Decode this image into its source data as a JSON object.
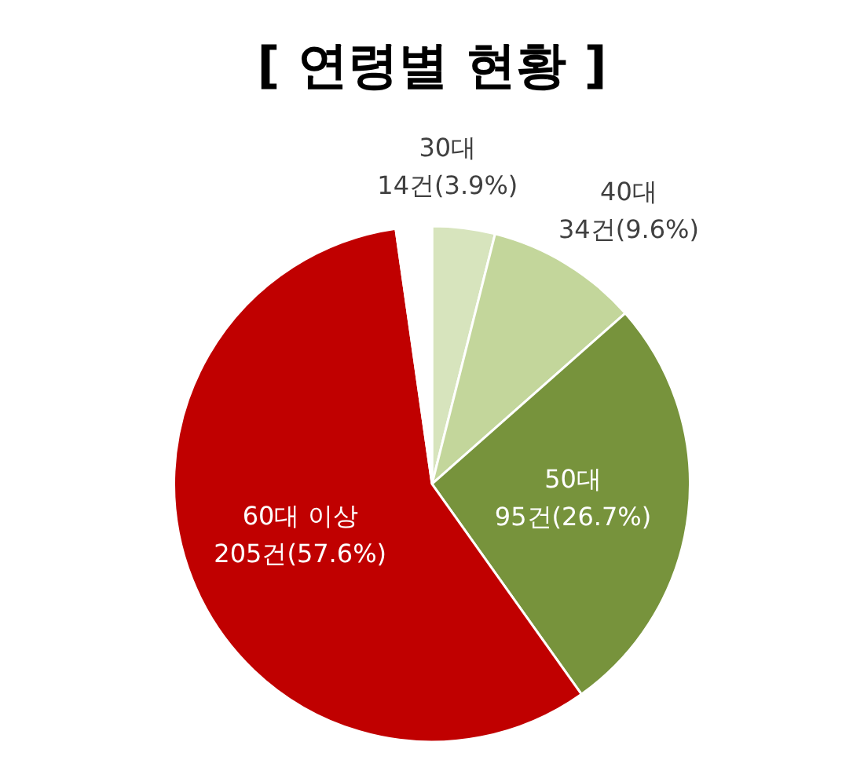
{
  "chart_data": {
    "type": "pie",
    "title": "[ 연령별 현황 ]",
    "categories": [
      "30대",
      "40대",
      "50대",
      "60대 이상",
      null
    ],
    "values": [
      14,
      34,
      95,
      205,
      8
    ],
    "colors": [
      "#d7e4bd",
      "#c3d69b",
      "#77933c",
      "#c00000",
      "#ffffff"
    ],
    "value_labels": [
      "14건(3.9%)",
      "34건(9.6%)",
      "95건(26.7%)",
      "205건(57.6%)",
      null
    ],
    "legend": false
  }
}
